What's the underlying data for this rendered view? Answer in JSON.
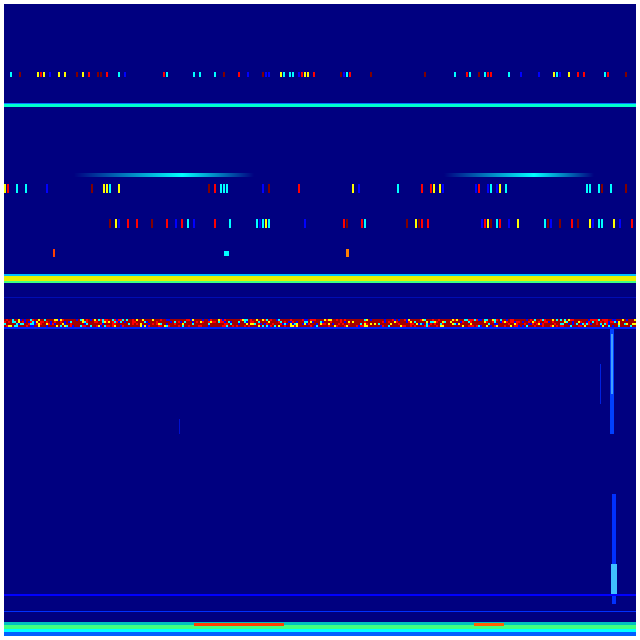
{
  "chart_data": {
    "type": "heatmap",
    "colormap": "jet",
    "colors": {
      "background": "#000080",
      "low": "#0000ff",
      "mid": "#00ffff",
      "high_mid": "#ffff00",
      "high": "#800000"
    },
    "grid": false,
    "title": "",
    "xlabel": "",
    "ylabel": ""
  }
}
